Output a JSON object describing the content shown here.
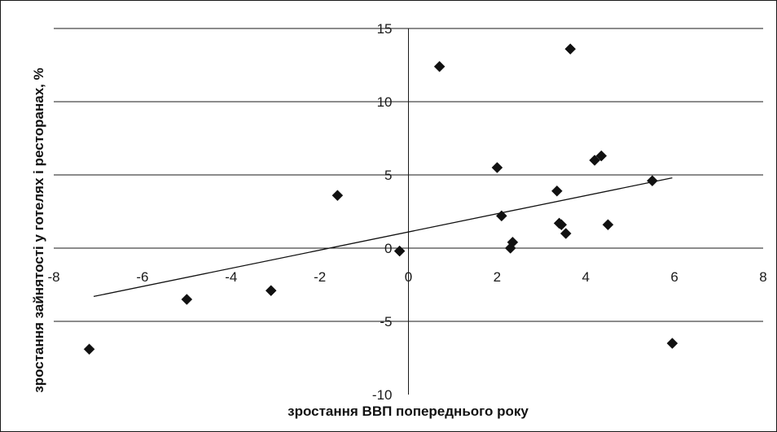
{
  "chart_data": {
    "type": "scatter",
    "title": "",
    "xlabel": "зростання ВВП попереднього року",
    "ylabel": "зростання зайнятості у готелях і ресторанах, %",
    "xlim": [
      -8,
      8
    ],
    "ylim": [
      -10,
      15
    ],
    "xticks": [
      -8,
      -6,
      -4,
      -2,
      0,
      2,
      4,
      6,
      8
    ],
    "yticks": [
      -10,
      -5,
      0,
      5,
      10,
      15
    ],
    "grid": "horizontal",
    "legend": "none",
    "marker": "diamond",
    "colors": {
      "marker": "#111111",
      "grid": "#1a1a1a",
      "trend": "#111111"
    },
    "series": [
      {
        "points": [
          {
            "x": -7.2,
            "y": -6.9
          },
          {
            "x": -5.0,
            "y": -3.5
          },
          {
            "x": -3.1,
            "y": -2.9
          },
          {
            "x": -1.6,
            "y": 3.6
          },
          {
            "x": -0.2,
            "y": -0.2
          },
          {
            "x": 0.7,
            "y": 12.4
          },
          {
            "x": 2.0,
            "y": 5.5
          },
          {
            "x": 2.1,
            "y": 2.2
          },
          {
            "x": 2.3,
            "y": 0.0
          },
          {
            "x": 2.35,
            "y": 0.4
          },
          {
            "x": 3.35,
            "y": 3.9
          },
          {
            "x": 3.4,
            "y": 1.7
          },
          {
            "x": 3.45,
            "y": 1.6
          },
          {
            "x": 3.55,
            "y": 1.0
          },
          {
            "x": 3.65,
            "y": 13.6
          },
          {
            "x": 4.2,
            "y": 6.0
          },
          {
            "x": 4.35,
            "y": 6.3
          },
          {
            "x": 4.5,
            "y": 1.6
          },
          {
            "x": 5.5,
            "y": 4.6
          },
          {
            "x": 5.95,
            "y": -6.5
          }
        ]
      }
    ],
    "trendline": {
      "type": "linear",
      "x": [
        -7.1,
        5.95
      ],
      "y": [
        -3.3,
        4.8
      ]
    }
  }
}
